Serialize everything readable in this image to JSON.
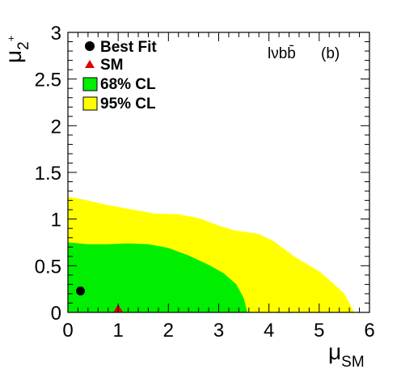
{
  "chart_data": {
    "type": "scatter",
    "xlabel": "μ",
    "xlabel_sub": "SM",
    "ylabel": "μ",
    "ylabel_sub": "2",
    "ylabel_sup": "+",
    "xlim": [
      0,
      6
    ],
    "ylim": [
      0,
      3
    ],
    "xticks": [
      0,
      1,
      2,
      3,
      4,
      5,
      6
    ],
    "xtick_labels": [
      "0",
      "1",
      "2",
      "3",
      "4",
      "5",
      "6"
    ],
    "yticks": [
      0,
      0.5,
      1,
      1.5,
      2,
      2.5,
      3
    ],
    "ytick_labels": [
      "0",
      "0.5",
      "1",
      "1.5",
      "2",
      "2.5",
      "3"
    ],
    "grid": false,
    "legend_placement": "top-left",
    "annotations": [
      {
        "text": "lνbb̄",
        "position": "top-right"
      },
      {
        "text": "(b)",
        "position": "top-right"
      }
    ],
    "colors": {
      "cl68": "#00ee00",
      "cl95": "#ffff00",
      "sm": "#e00000",
      "best_fit": "#000000"
    },
    "series": [
      {
        "name": "95% CL",
        "kind": "region",
        "boundary": [
          [
            0.0,
            1.24
          ],
          [
            0.3,
            1.21
          ],
          [
            0.7,
            1.16
          ],
          [
            1.0,
            1.13
          ],
          [
            1.3,
            1.1
          ],
          [
            1.7,
            1.06
          ],
          [
            2.2,
            1.05
          ],
          [
            2.6,
            1.01
          ],
          [
            3.0,
            0.93
          ],
          [
            3.3,
            0.88
          ],
          [
            3.8,
            0.84
          ],
          [
            4.1,
            0.76
          ],
          [
            4.5,
            0.6
          ],
          [
            5.0,
            0.44
          ],
          [
            5.3,
            0.3
          ],
          [
            5.5,
            0.2
          ],
          [
            5.65,
            0.05
          ],
          [
            5.7,
            0.0
          ]
        ]
      },
      {
        "name": "68% CL",
        "kind": "region",
        "boundary": [
          [
            0.0,
            0.75
          ],
          [
            0.4,
            0.73
          ],
          [
            0.8,
            0.73
          ],
          [
            1.2,
            0.74
          ],
          [
            1.6,
            0.73
          ],
          [
            2.0,
            0.69
          ],
          [
            2.4,
            0.61
          ],
          [
            2.8,
            0.51
          ],
          [
            3.1,
            0.42
          ],
          [
            3.35,
            0.3
          ],
          [
            3.5,
            0.15
          ],
          [
            3.57,
            0.0
          ]
        ]
      },
      {
        "name": "Best Fit",
        "kind": "point",
        "marker": "circle",
        "x": 0.25,
        "y": 0.23
      },
      {
        "name": "SM",
        "kind": "point",
        "marker": "triangle",
        "x": 1.0,
        "y": 0.0
      }
    ],
    "legend": [
      "Best Fit",
      "SM",
      "68% CL",
      "95% CL"
    ]
  }
}
